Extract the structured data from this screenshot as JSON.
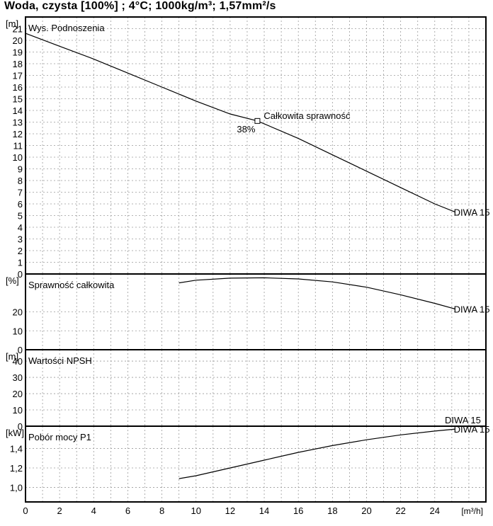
{
  "title": "Woda, czysta [100%] ; 4°C; 1000kg/m³; 1,57mm²/s",
  "x_axis": {
    "unit": "[m³/h]",
    "min": 0,
    "max": 27,
    "ticks": [
      0,
      2,
      4,
      6,
      8,
      10,
      12,
      14,
      16,
      18,
      20,
      22,
      24
    ],
    "tick_labels": [
      "0",
      "2",
      "4",
      "6",
      "8",
      "10",
      "12",
      "14",
      "16",
      "18",
      "20",
      "22",
      "24"
    ],
    "grid_step": 1
  },
  "colors": {
    "grid": "#9a9a9a",
    "curve": "#000000",
    "frame": "#000000"
  },
  "chart_data": [
    {
      "type": "line",
      "title": "Wys. Podnoszenia",
      "unit": "[m]",
      "ylim": [
        0,
        22
      ],
      "grid": true,
      "y_ticks": [
        0,
        1,
        2,
        3,
        4,
        5,
        6,
        7,
        8,
        9,
        10,
        11,
        12,
        13,
        14,
        15,
        16,
        17,
        18,
        19,
        20,
        21
      ],
      "y_tick_labels": [
        "0",
        "1",
        "2",
        "3",
        "4",
        "5",
        "6",
        "7",
        "8",
        "9",
        "10",
        "11",
        "12",
        "13",
        "14",
        "15",
        "16",
        "17",
        "18",
        "19",
        "20",
        "21"
      ],
      "series": [
        {
          "label": "DIWA 15",
          "x": [
            0,
            2,
            4,
            6,
            8,
            10,
            12,
            13.6,
            16,
            18,
            20,
            22,
            24,
            25.2
          ],
          "y": [
            20.6,
            19.5,
            18.4,
            17.2,
            16.0,
            14.8,
            13.7,
            13.1,
            11.6,
            10.2,
            8.8,
            7.4,
            6.0,
            5.3
          ]
        }
      ],
      "annotations": [
        {
          "text": "Całkowita sprawność",
          "x": 13.6,
          "y": 13.1,
          "marker": "square"
        },
        {
          "text": "38%",
          "x": 13.6,
          "y": 13.1
        }
      ]
    },
    {
      "type": "line",
      "title": "Sprawność całkowita",
      "unit": "[%]",
      "ylim": [
        0,
        40
      ],
      "grid": true,
      "y_ticks": [
        0,
        10,
        20
      ],
      "y_tick_labels": [
        "0",
        "10",
        "20"
      ],
      "series": [
        {
          "label": "DIWA 15",
          "x": [
            9,
            10,
            12,
            14,
            16,
            18,
            20,
            22,
            24,
            25.2
          ],
          "y": [
            35.3,
            36.7,
            37.8,
            38,
            37.4,
            35.8,
            33,
            29,
            24.5,
            21.5
          ]
        }
      ]
    },
    {
      "type": "line",
      "title": "Wartości NPSH",
      "unit": "[m]",
      "ylim": [
        0,
        47
      ],
      "grid": true,
      "y_ticks": [
        0,
        10,
        20,
        30,
        40
      ],
      "y_tick_labels": [
        "0",
        "10",
        "20",
        "30",
        "40"
      ],
      "series": [
        {
          "label": "DIWA 15",
          "x": [],
          "y": []
        }
      ]
    },
    {
      "type": "line",
      "title": "Pobór mocy P1",
      "unit": "[kW]",
      "ylim": [
        0.85,
        1.63
      ],
      "grid": true,
      "y_ticks": [
        1.0,
        1.2,
        1.4
      ],
      "y_tick_labels": [
        "1,0",
        "1,2",
        "1,4"
      ],
      "series": [
        {
          "label": "DIWA 15 (P1)",
          "x": [
            9,
            10,
            12,
            14,
            16,
            18,
            20,
            22,
            24,
            25.2
          ],
          "y": [
            1.09,
            1.12,
            1.2,
            1.28,
            1.36,
            1.43,
            1.49,
            1.54,
            1.58,
            1.6
          ]
        }
      ]
    }
  ]
}
